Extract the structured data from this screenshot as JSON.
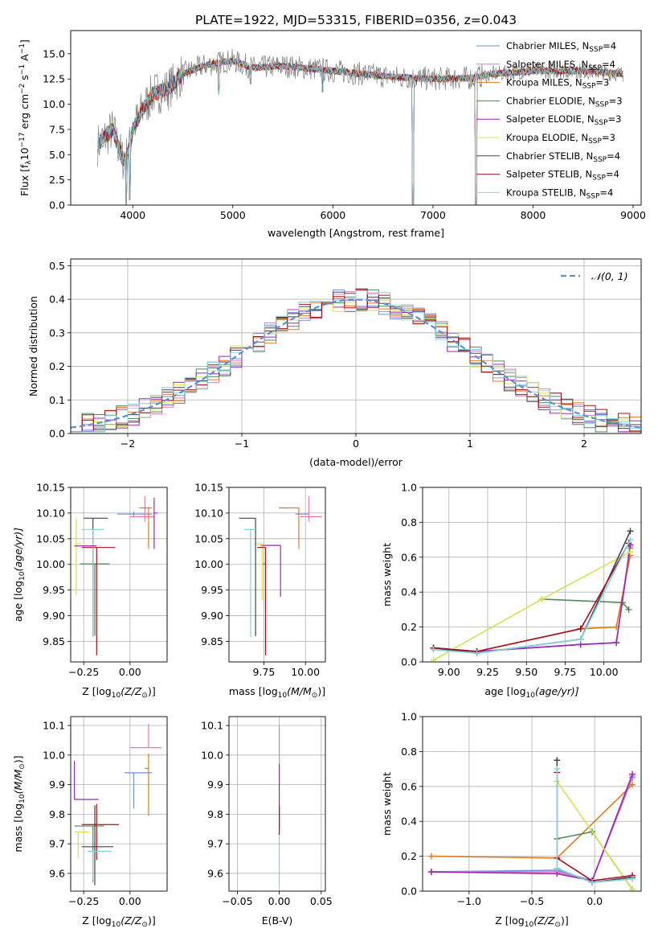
{
  "figure": {
    "title": "PLATE=1922, MJD=53315, FIBERID=0356, z=0.043"
  },
  "legend_colors": {
    "Chabrier MILES": "#6f8fd8",
    "Salpeter MILES": "#e377c2",
    "Kroupa MILES": "#e07b1c",
    "Chabrier ELODIE": "#4f8a5c",
    "Salpeter ELODIE": "#9b26b6",
    "Kroupa ELODIE": "#d8e050",
    "Chabrier STELIB": "#444444",
    "Salpeter STELIB": "#a3101e",
    "Kroupa STELIB": "#7fd3e0"
  },
  "chart_data": [
    {
      "id": "spectrum",
      "type": "line",
      "xlabel": "wavelength [Angstrom, rest frame]",
      "ylabel": "Flux [f",
      "xlim": [
        3380,
        9080
      ],
      "ylim": [
        0,
        17.3
      ],
      "xticks": [
        4000,
        5000,
        6000,
        7000,
        8000,
        9000
      ],
      "yticks": [
        0.0,
        2.5,
        5.0,
        7.5,
        10.0,
        12.5,
        15.0
      ],
      "ylabel_parts": {
        "a": "Flux [f",
        "b": "λ",
        "c": "10",
        "d": "−17",
        "e": " erg cm",
        "f": "−2",
        "g": " s",
        "h": "−1",
        "i": " A",
        "j": "−1",
        "k": "]"
      },
      "legend": [
        {
          "name": "Chabrier MILES",
          "n": "4"
        },
        {
          "name": "Salpeter MILES",
          "n": "4"
        },
        {
          "name": "Kroupa MILES",
          "n": "3"
        },
        {
          "name": "Chabrier ELODIE",
          "n": "3"
        },
        {
          "name": "Salpeter ELODIE",
          "n": "3"
        },
        {
          "name": "Kroupa ELODIE",
          "n": "3"
        },
        {
          "name": "Chabrier STELIB",
          "n": "4"
        },
        {
          "name": "Salpeter STELIB",
          "n": "4"
        },
        {
          "name": "Kroupa STELIB",
          "n": "4"
        }
      ],
      "legend_nssp": "N",
      "legend_nssp_sub": "SSP",
      "continuum_knots": [
        [
          3650,
          6.0
        ],
        [
          3800,
          7.5
        ],
        [
          3900,
          4.5
        ],
        [
          3950,
          5.0
        ],
        [
          4000,
          7.5
        ],
        [
          4100,
          9.5
        ],
        [
          4200,
          11.0
        ],
        [
          4350,
          11.5
        ],
        [
          4500,
          13.0
        ],
        [
          4700,
          13.8
        ],
        [
          4900,
          14.2
        ],
        [
          5000,
          14.3
        ],
        [
          5200,
          13.6
        ],
        [
          5500,
          13.8
        ],
        [
          5800,
          13.5
        ],
        [
          6000,
          13.3
        ],
        [
          6300,
          13.0
        ],
        [
          6600,
          12.7
        ],
        [
          7000,
          12.5
        ],
        [
          7400,
          12.6
        ],
        [
          7600,
          13.0
        ],
        [
          8000,
          13.3
        ],
        [
          8500,
          13.3
        ],
        [
          8900,
          13.0
        ]
      ],
      "dips": [
        [
          3935,
          0.0
        ],
        [
          3970,
          0.5
        ],
        [
          4860,
          11.0
        ],
        [
          5175,
          12.0
        ],
        [
          5895,
          11.2
        ],
        [
          6800,
          0.0
        ],
        [
          7430,
          0.0
        ]
      ]
    },
    {
      "id": "residuals",
      "type": "histogram",
      "xlabel": "(data-model)/error",
      "ylabel": "Normed distribution",
      "xlim": [
        -2.5,
        2.5
      ],
      "ylim": [
        0,
        0.52
      ],
      "xticks": [
        -2,
        -1,
        0,
        1,
        2
      ],
      "yticks": [
        0.0,
        0.1,
        0.2,
        0.3,
        0.4,
        0.5
      ],
      "legend_label": "𝒩(0, 1)",
      "bin_width": 0.1
    },
    {
      "id": "age_vs_Z",
      "type": "errorbar",
      "xlabel": "Z [log",
      "xlabel_parts": {
        "a": "Z [log",
        "b": "10",
        "c": "(Z/Z",
        "d": "⊙",
        "e": ")]"
      },
      "ylabel": "age  [log",
      "ylabel_parts": {
        "a": "age  [log",
        "b": "10",
        "c": "(age/yr)]"
      },
      "xlim": [
        -0.32,
        0.2
      ],
      "ylim": [
        9.81,
        10.15
      ],
      "xticks": [
        -0.25,
        0.0
      ],
      "xticklabels": [
        "−0.25",
        "0.00"
      ],
      "yticks": [
        9.85,
        9.9,
        9.95,
        10.0,
        10.05,
        10.1,
        10.15
      ],
      "points": [
        {
          "series": "Chabrier MILES",
          "x": 0.02,
          "y": 10.098,
          "xerr": [
            0.09,
            0.1
          ],
          "yerr": [
            0.005,
            0.005
          ]
        },
        {
          "series": "Salpeter MILES",
          "x": 0.08,
          "y": 10.093,
          "xerr": [
            0.08,
            0.05
          ],
          "yerr": [
            0.01,
            0.04
          ]
        },
        {
          "series": "Kroupa MILES",
          "x": 0.1,
          "y": 10.11,
          "xerr": [
            0.05,
            0.02
          ],
          "yerr": [
            0.08,
            0.0
          ]
        },
        {
          "series": "Chabrier ELODIE",
          "x": -0.19,
          "y": 10.001,
          "xerr": [
            0.08,
            0.08
          ],
          "yerr": [
            0.14,
            0.0
          ]
        },
        {
          "series": "Salpeter ELODIE",
          "x": 0.13,
          "y": 10.1,
          "xerr": [
            0.0,
            0.02
          ],
          "yerr": [
            0.07,
            0.03
          ]
        },
        {
          "series": "Kroupa ELODIE",
          "x": -0.29,
          "y": 10.04,
          "xerr": [
            0.0,
            0.03
          ],
          "yerr": [
            0.1,
            0.05
          ]
        },
        {
          "series": "Chabrier STELIB",
          "x": -0.2,
          "y": 10.09,
          "xerr": [
            0.05,
            0.08
          ],
          "yerr": [
            0.23,
            0.0
          ]
        },
        {
          "series": "Salpeter STELIB",
          "x": -0.18,
          "y": 10.033,
          "xerr": [
            0.08,
            0.1
          ],
          "yerr": [
            0.21,
            0.0
          ]
        },
        {
          "series": "Kroupa STELIB",
          "x": -0.2,
          "y": 10.068,
          "xerr": [
            0.06,
            0.06
          ],
          "yerr": [
            0.21,
            0.0
          ]
        },
        {
          "series": "Salpeter ELODIE",
          "x": -0.3,
          "y": 10.036,
          "xerr": [
            0.0,
            0.12
          ],
          "yerr": [
            0.0,
            0.0
          ]
        }
      ]
    },
    {
      "id": "age_vs_mass",
      "type": "errorbar",
      "xlabel": "mass [log",
      "xlabel_parts": {
        "a": "mass [log",
        "b": "10",
        "c": "(M/M",
        "d": "⊙",
        "e": ")]"
      },
      "xlim": [
        9.54,
        10.12
      ],
      "ylim": [
        9.81,
        10.15
      ],
      "xticks": [
        9.75,
        10.0
      ],
      "xticklabels": [
        "9.75",
        "10.00"
      ],
      "yticks": [
        9.85,
        9.9,
        9.95,
        10.0,
        10.05,
        10.1,
        10.15
      ],
      "points": [
        {
          "series": "Chabrier MILES",
          "x": 9.94,
          "y": 10.098,
          "xerr": [
            0.0,
            0.08
          ],
          "yerr": [
            0.0,
            0.0
          ]
        },
        {
          "series": "Salpeter MILES",
          "x": 10.02,
          "y": 10.093,
          "xerr": [
            0.05,
            0.08
          ],
          "yerr": [
            0.01,
            0.04
          ]
        },
        {
          "series": "Kroupa MILES",
          "x": 9.96,
          "y": 10.11,
          "xerr": [
            0.12,
            0.0
          ],
          "yerr": [
            0.08,
            0.0
          ]
        },
        {
          "series": "Chabrier ELODIE",
          "x": 9.76,
          "y": 10.001,
          "xerr": [
            0.02,
            0.0
          ],
          "yerr": [
            0.0,
            0.0
          ]
        },
        {
          "series": "Salpeter ELODIE",
          "x": 9.85,
          "y": 10.037,
          "xerr": [
            0.12,
            0.0
          ],
          "yerr": [
            0.1,
            0.0
          ]
        },
        {
          "series": "Kroupa ELODIE",
          "x": 9.74,
          "y": 10.04,
          "xerr": [
            0.05,
            0.0
          ],
          "yerr": [
            0.11,
            0.0
          ]
        },
        {
          "series": "Chabrier STELIB",
          "x": 9.7,
          "y": 10.09,
          "xerr": [
            0.1,
            0.0
          ],
          "yerr": [
            0.23,
            0.0
          ]
        },
        {
          "series": "Salpeter STELIB",
          "x": 9.76,
          "y": 10.033,
          "xerr": [
            0.05,
            0.0
          ],
          "yerr": [
            0.21,
            0.0
          ]
        },
        {
          "series": "Kroupa STELIB",
          "x": 9.67,
          "y": 10.068,
          "xerr": [
            0.04,
            0.03
          ],
          "yerr": [
            0.21,
            0.0
          ]
        }
      ]
    },
    {
      "id": "weight_vs_age",
      "type": "line",
      "xlabel": "age  [log",
      "xlabel_parts": {
        "a": "age  [log",
        "b": "10",
        "c": "(age/yr)]"
      },
      "ylabel": "mass weight",
      "xlim": [
        8.83,
        10.24
      ],
      "ylim": [
        0,
        1
      ],
      "xticks": [
        9.0,
        9.25,
        9.5,
        9.75,
        10.0
      ],
      "xticklabels": [
        "9.00",
        "9.25",
        "9.50",
        "9.75",
        "10.00"
      ],
      "yticks": [
        0.0,
        0.2,
        0.4,
        0.6,
        0.8,
        1.0
      ],
      "series": [
        {
          "name": "Chabrier MILES",
          "x": [
            8.9,
            9.18,
            9.85,
            10.08,
            10.17
          ],
          "y": [
            0.08,
            0.06,
            0.1,
            0.11,
            0.65
          ]
        },
        {
          "name": "Salpeter MILES",
          "x": [
            8.9,
            9.18,
            9.85,
            10.08,
            10.17
          ],
          "y": [
            0.08,
            0.06,
            0.1,
            0.11,
            0.66
          ]
        },
        {
          "name": "Kroupa MILES",
          "x": [
            8.9,
            9.18,
            9.85,
            10.08,
            10.17
          ],
          "y": [
            0.08,
            0.06,
            0.19,
            0.2,
            0.61
          ]
        },
        {
          "name": "Chabrier ELODIE",
          "x": [
            9.6,
            10.12,
            10.16
          ],
          "y": [
            0.36,
            0.34,
            0.3
          ]
        },
        {
          "name": "Salpeter ELODIE",
          "x": [
            8.9,
            9.18,
            9.85,
            10.08,
            10.17
          ],
          "y": [
            0.08,
            0.06,
            0.1,
            0.11,
            0.67
          ]
        },
        {
          "name": "Kroupa ELODIE",
          "x": [
            8.9,
            9.6,
            10.17
          ],
          "y": [
            0.01,
            0.36,
            0.63
          ]
        },
        {
          "name": "Chabrier STELIB",
          "x": [
            8.9,
            9.18,
            9.85,
            10.17
          ],
          "y": [
            0.08,
            0.05,
            0.13,
            0.75
          ]
        },
        {
          "name": "Salpeter STELIB",
          "x": [
            8.9,
            9.18,
            9.85,
            10.16
          ],
          "y": [
            0.08,
            0.06,
            0.19,
            0.68
          ]
        },
        {
          "name": "Kroupa STELIB",
          "x": [
            8.9,
            9.18,
            9.85,
            10.17
          ],
          "y": [
            0.07,
            0.05,
            0.13,
            0.7
          ]
        }
      ]
    },
    {
      "id": "mass_vs_Z",
      "type": "errorbar",
      "xlabel": "Z [log",
      "xlabel_parts": {
        "a": "Z [log",
        "b": "10",
        "c": "(Z/Z",
        "d": "⊙",
        "e": ")]"
      },
      "ylabel": "mass [log",
      "ylabel_parts": {
        "a": "mass [log",
        "b": "10",
        "c": "(M/M",
        "d": "⊙",
        "e": ")]"
      },
      "xlim": [
        -0.32,
        0.2
      ],
      "ylim": [
        9.54,
        10.13
      ],
      "xticks": [
        -0.25,
        0.0
      ],
      "xticklabels": [
        "−0.25",
        "0.00"
      ],
      "yticks": [
        9.6,
        9.7,
        9.8,
        9.9,
        10.0,
        10.1
      ],
      "points": [
        {
          "series": "Chabrier MILES",
          "x": 0.02,
          "y": 9.94,
          "xerr": [
            0.05,
            0.1
          ],
          "yerr": [
            0.12,
            0.0
          ]
        },
        {
          "series": "Salpeter MILES",
          "x": 0.1,
          "y": 10.025,
          "xerr": [
            0.1,
            0.07
          ],
          "yerr": [
            0.0,
            0.08
          ]
        },
        {
          "series": "Kroupa MILES",
          "x": 0.1,
          "y": 9.955,
          "xerr": [
            0.02,
            0.0
          ],
          "yerr": [
            0.16,
            0.05
          ]
        },
        {
          "series": "Chabrier ELODIE",
          "x": -0.2,
          "y": 9.76,
          "xerr": [
            0.1,
            0.06
          ],
          "yerr": [
            0.19,
            0.0
          ]
        },
        {
          "series": "Salpeter ELODIE",
          "x": -0.3,
          "y": 9.85,
          "xerr": [
            0.0,
            0.13
          ],
          "yerr": [
            0.0,
            0.13
          ]
        },
        {
          "series": "Kroupa ELODIE",
          "x": -0.28,
          "y": 9.74,
          "xerr": [
            0.02,
            0.06
          ],
          "yerr": [
            0.09,
            0.0
          ]
        },
        {
          "series": "Chabrier STELIB",
          "x": -0.19,
          "y": 9.69,
          "xerr": [
            0.07,
            0.1
          ],
          "yerr": [
            0.13,
            0.14
          ]
        },
        {
          "series": "Salpeter STELIB",
          "x": -0.18,
          "y": 9.765,
          "xerr": [
            0.08,
            0.12
          ],
          "yerr": [
            0.12,
            0.07
          ]
        },
        {
          "series": "Kroupa STELIB",
          "x": -0.2,
          "y": 9.675,
          "xerr": [
            0.03,
            0.1
          ],
          "yerr": [
            0.1,
            0.0
          ]
        }
      ]
    },
    {
      "id": "mass_vs_ebv",
      "type": "errorbar",
      "xlabel": "E(B-V)",
      "xlim": [
        -0.06,
        0.055
      ],
      "ylim": [
        9.54,
        10.13
      ],
      "xticks": [
        -0.05,
        0.0,
        0.05
      ],
      "xticklabels": [
        "−0.05",
        "0.00",
        "0.05"
      ],
      "yticks": [
        9.6,
        9.7,
        9.8,
        9.9,
        10.0,
        10.1
      ],
      "points": [
        {
          "series": "Salpeter MILES",
          "x": 0.0,
          "y": 10.0,
          "yerr": [
            0.1,
            0.1
          ]
        },
        {
          "series": "Salpeter ELODIE",
          "x": 0.0,
          "y": 9.85,
          "yerr": [
            0.1,
            0.12
          ]
        },
        {
          "series": "Salpeter STELIB",
          "x": 0.0,
          "y": 9.78,
          "yerr": [
            0.05,
            0.05
          ]
        },
        {
          "series": "Kroupa STELIB",
          "x": 0.0,
          "y": 9.68,
          "yerr": [
            0.12,
            0.05
          ]
        }
      ]
    },
    {
      "id": "weight_vs_Z",
      "type": "line",
      "xlabel": "Z [log",
      "xlabel_parts": {
        "a": "Z [log",
        "b": "10",
        "c": "(Z/Z",
        "d": "⊙",
        "e": ")]"
      },
      "ylabel": "mass weight",
      "xlim": [
        -1.37,
        0.37
      ],
      "ylim": [
        0,
        1
      ],
      "xticks": [
        -1.0,
        -0.5,
        0.0
      ],
      "xticklabels": [
        "−1.0",
        "−0.5",
        "0.0"
      ],
      "yticks": [
        0.0,
        0.2,
        0.4,
        0.6,
        0.8,
        1.0
      ],
      "series": [
        {
          "name": "Chabrier MILES",
          "x": [
            -1.3,
            -0.3,
            -0.02,
            0.3
          ],
          "y": [
            0.11,
            0.12,
            0.06,
            0.65
          ]
        },
        {
          "name": "Salpeter MILES",
          "x": [
            -1.3,
            -0.3,
            -0.02,
            0.3
          ],
          "y": [
            0.11,
            0.11,
            0.06,
            0.66
          ]
        },
        {
          "name": "Kroupa MILES",
          "x": [
            -1.3,
            -0.3,
            0.3
          ],
          "y": [
            0.2,
            0.19,
            0.61
          ]
        },
        {
          "name": "Chabrier ELODIE",
          "x": [
            -0.3,
            -0.02,
            0.3
          ],
          "y": [
            0.3,
            0.34,
            0.01
          ]
        },
        {
          "name": "Salpeter ELODIE",
          "x": [
            -1.3,
            -0.3,
            -0.02,
            0.3
          ],
          "y": [
            0.11,
            0.1,
            0.06,
            0.67
          ]
        },
        {
          "name": "Kroupa ELODIE",
          "x": [
            -0.3,
            0.3
          ],
          "y": [
            0.63,
            0.01
          ]
        },
        {
          "name": "Chabrier STELIB",
          "x": [
            -0.3,
            -0.3,
            -0.02,
            0.3
          ],
          "y": [
            0.75,
            0.13,
            0.05,
            0.08
          ]
        },
        {
          "name": "Salpeter STELIB",
          "x": [
            -0.3,
            -0.3,
            -0.02,
            0.3
          ],
          "y": [
            0.68,
            0.19,
            0.06,
            0.09
          ]
        },
        {
          "name": "Kroupa STELIB",
          "x": [
            -0.3,
            -0.3,
            -0.02,
            0.3
          ],
          "y": [
            0.7,
            0.13,
            0.05,
            0.07
          ]
        }
      ]
    }
  ]
}
